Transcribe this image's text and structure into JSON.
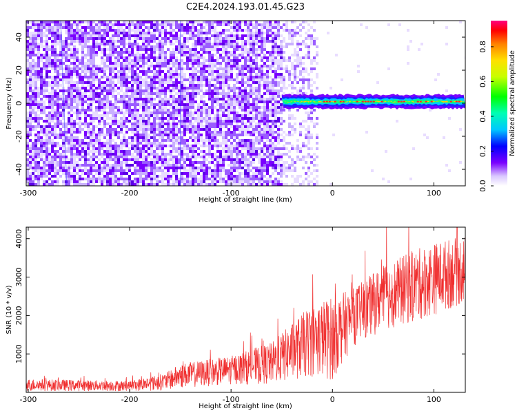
{
  "title": "C2E4.2024.193.01.45.G23",
  "chart_data": [
    {
      "type": "heatmap",
      "xlabel": "Height of straight line (km)",
      "ylabel": "Frequency (Hz)",
      "xlim": [
        -302,
        131
      ],
      "ylim": [
        -50,
        50
      ],
      "xticks": [
        -300,
        -200,
        -100,
        0,
        100
      ],
      "yticks": [
        -40,
        -20,
        0,
        20,
        40
      ],
      "grid": false,
      "colorbar": {
        "label": "Normalized spectral amplitude",
        "range": [
          0.0,
          0.95
        ],
        "ticks": [
          "0.0",
          "0.2",
          "0.4",
          "0.6",
          "0.8"
        ],
        "colormap": "rainbow"
      },
      "features": {
        "noise_region_x": [
          -302,
          -50
        ],
        "sparse_region_x": [
          -50,
          -15
        ],
        "signal_line": {
          "x_start": -50,
          "x_end": 131,
          "frequency": 1,
          "amplitude_range": [
            0.4,
            0.95
          ]
        }
      }
    },
    {
      "type": "line",
      "xlabel": "Height of straight line (km)",
      "ylabel": "SNR (10 * v/v)",
      "xlim": [
        -302,
        131
      ],
      "ylim": [
        0,
        4300
      ],
      "xticks": [
        -300,
        -200,
        -100,
        0,
        100
      ],
      "yticks": [
        1000,
        2000,
        3000,
        4000
      ],
      "grid": false,
      "series": [
        {
          "color": "#f03030",
          "envelope": [
            {
              "x": -302,
              "lo": 30,
              "hi": 350
            },
            {
              "x": -200,
              "lo": 30,
              "hi": 300
            },
            {
              "x": -165,
              "lo": 50,
              "hi": 500
            },
            {
              "x": -150,
              "lo": 100,
              "hi": 750
            },
            {
              "x": -100,
              "lo": 200,
              "hi": 950
            },
            {
              "x": -60,
              "lo": 200,
              "hi": 1300
            },
            {
              "x": -20,
              "lo": 400,
              "hi": 2300
            },
            {
              "x": 0,
              "lo": 300,
              "hi": 2500
            },
            {
              "x": 20,
              "lo": 1200,
              "hi": 2700
            },
            {
              "x": 50,
              "lo": 1600,
              "hi": 3300
            },
            {
              "x": 80,
              "lo": 1800,
              "hi": 3700
            },
            {
              "x": 100,
              "lo": 2000,
              "hi": 3900
            },
            {
              "x": 131,
              "lo": 2300,
              "hi": 4100
            }
          ]
        }
      ]
    }
  ]
}
